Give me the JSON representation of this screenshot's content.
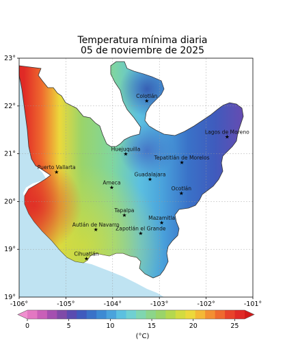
{
  "title": {
    "line1": "Temperatura mínima diaria",
    "line2": "05 de noviembre de 2025"
  },
  "axes": {
    "x_ticks": [
      "-106°",
      "-105°",
      "-104°",
      "-103°",
      "-102°",
      "-101°"
    ],
    "y_ticks": [
      "23°",
      "22°",
      "21°",
      "20°",
      "19°"
    ],
    "y_bottom": "19°"
  },
  "colorbar": {
    "ticks": [
      "0",
      "5",
      "10",
      "15",
      "20",
      "25"
    ],
    "unit": "(°C)",
    "colors": [
      "#e377c2",
      "#c95fb8",
      "#a44fb0",
      "#7f4aa8",
      "#5a4bb0",
      "#3f5bbd",
      "#3a72c8",
      "#3d8ad3",
      "#4aa3dc",
      "#5cc0e0",
      "#6fd0d2",
      "#7fd6b0",
      "#8cd58a",
      "#9ad46a",
      "#b4d84e",
      "#d3db3f",
      "#ecd83b",
      "#f4b836",
      "#f38f32",
      "#ef6a2e",
      "#e8432a",
      "#e02a26"
    ]
  },
  "cities": [
    {
      "name": "Colotlán",
      "lon": -103.27,
      "lat": 22.11
    },
    {
      "name": "Lagos de Moreno",
      "lon": -101.55,
      "lat": 21.36
    },
    {
      "name": "Huejuquilla",
      "lon": -103.72,
      "lat": 21.0
    },
    {
      "name": "Tepatitlán de Morelos",
      "lon": -102.52,
      "lat": 20.82
    },
    {
      "name": "Puerto Vallarta",
      "lon": -105.2,
      "lat": 20.62
    },
    {
      "name": "Guadalajara",
      "lon": -103.2,
      "lat": 20.47
    },
    {
      "name": "Ameca",
      "lon": -104.02,
      "lat": 20.3
    },
    {
      "name": "Ocotlán",
      "lon": -102.53,
      "lat": 20.18
    },
    {
      "name": "Tapalpa",
      "lon": -103.75,
      "lat": 19.72
    },
    {
      "name": "Mazamitla",
      "lon": -102.95,
      "lat": 19.56
    },
    {
      "name": "Autlán de Navarro",
      "lon": -104.36,
      "lat": 19.42
    },
    {
      "name": "Zapotlán el Grande",
      "lon": -103.4,
      "lat": 19.34
    },
    {
      "name": "Cihuatlán",
      "lon": -104.56,
      "lat": 18.81
    }
  ]
}
